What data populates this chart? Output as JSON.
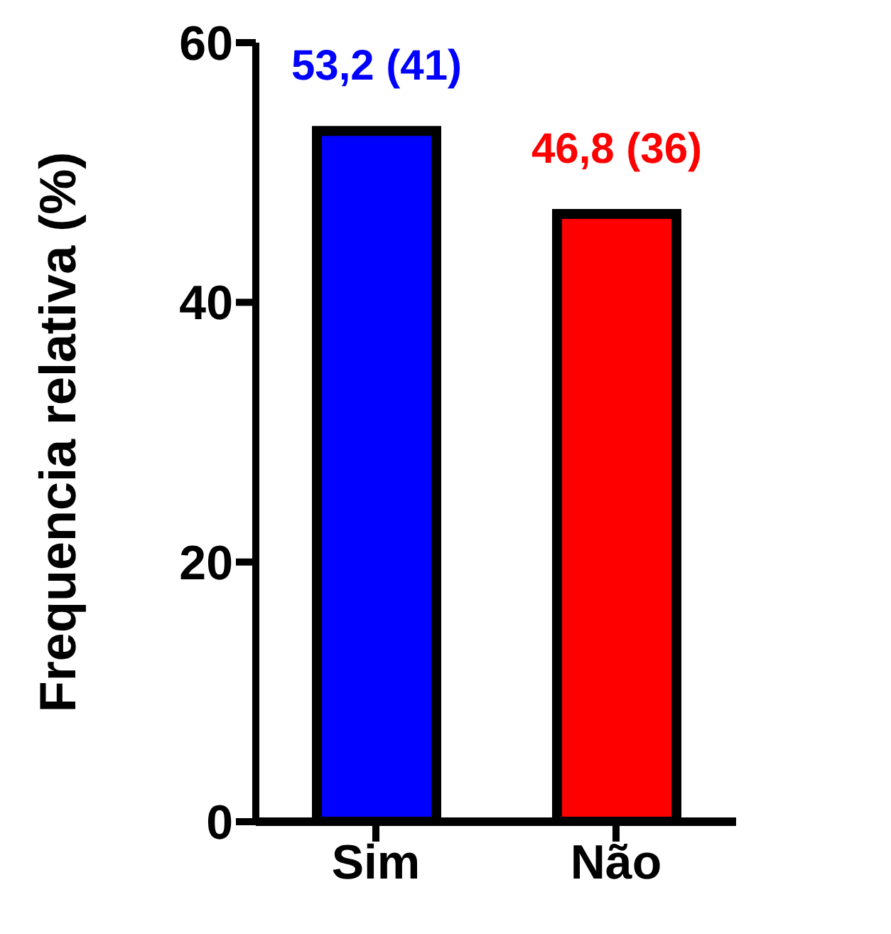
{
  "chart_data": {
    "type": "bar",
    "ylabel": "Frequencia relativa (%)",
    "categories": [
      "Sim",
      "Não"
    ],
    "values": [
      53.2,
      46.8
    ],
    "colors": [
      "#0000ff",
      "#ff0000"
    ],
    "value_labels": [
      "53,2 (41)",
      "46,8 (36)"
    ],
    "ylim": [
      0,
      60
    ],
    "yticks": [
      0,
      20,
      40,
      60
    ]
  }
}
